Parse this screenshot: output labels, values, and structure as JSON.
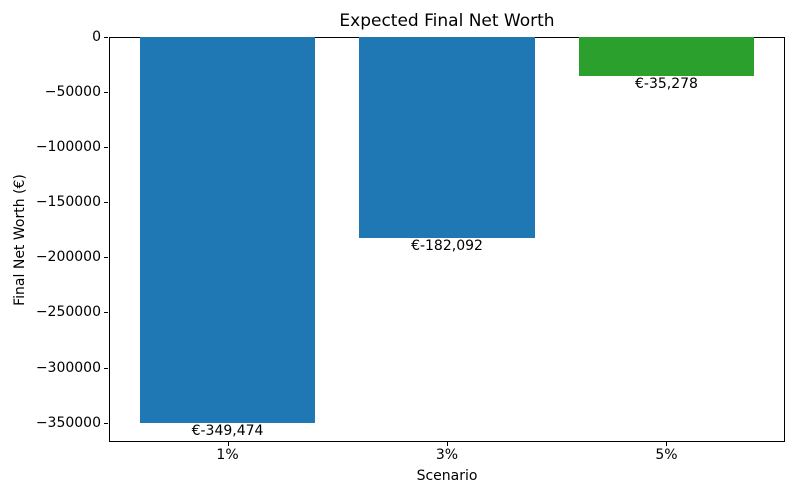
{
  "chart_data": {
    "type": "bar",
    "title": "Expected Final Net Worth",
    "xlabel": "Scenario",
    "ylabel": "Final Net Worth (€)",
    "categories": [
      "1%",
      "3%",
      "5%"
    ],
    "values": [
      -349474,
      -182092,
      -35278
    ],
    "bar_labels": [
      "€-349,474",
      "€-182,092",
      "€-35,278"
    ],
    "bar_colors": [
      "#1f77b4",
      "#1f77b4",
      "#2ca02c"
    ],
    "bar_width": 0.8,
    "xlim": [
      -0.54,
      2.54
    ],
    "ylim": [
      -367000,
      0
    ],
    "yticks": [
      0,
      -50000,
      -100000,
      -150000,
      -200000,
      -250000,
      -300000,
      -350000
    ],
    "ytick_labels": [
      "0",
      "−50000",
      "−100000",
      "−150000",
      "−200000",
      "−250000",
      "−300000",
      "−350000"
    ],
    "grid": false,
    "legend": null,
    "background_color": "#ffffff",
    "spine_color": "#000000"
  }
}
